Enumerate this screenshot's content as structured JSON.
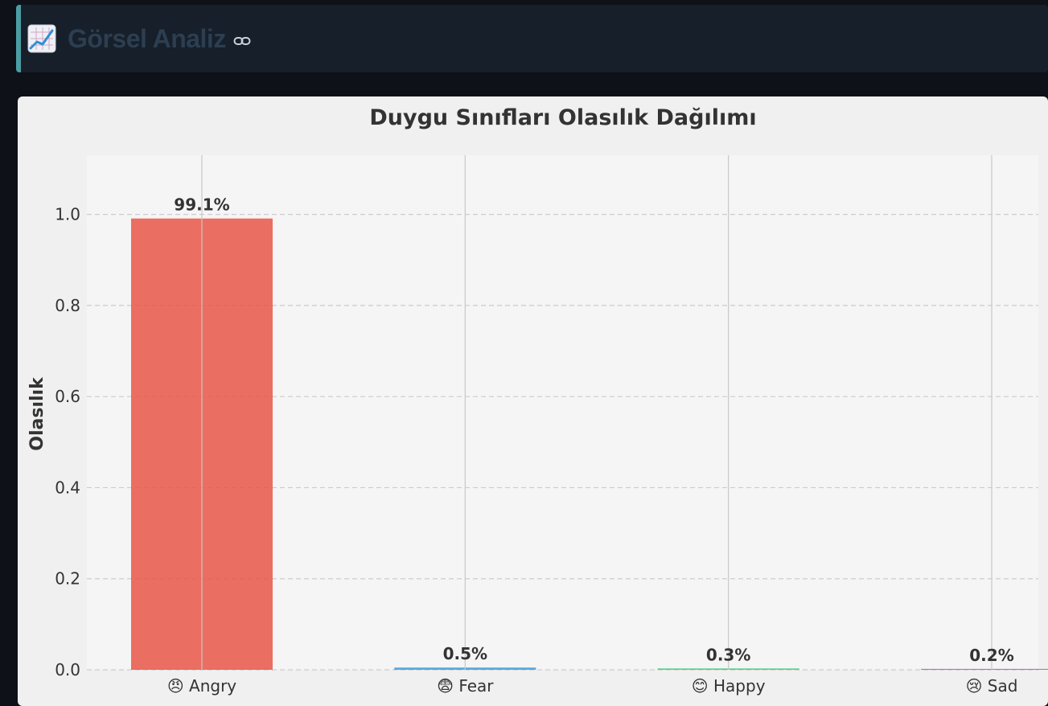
{
  "section": {
    "title": "Görsel Analiz",
    "icon": "chart-increasing-icon",
    "link_icon": "link-icon",
    "accent_color": "#4a9ea3"
  },
  "chart_data": {
    "type": "bar",
    "title": "Duygu Sınıfları Olasılık Dağılımı",
    "xlabel": "",
    "ylabel": "Olasılık",
    "categories": [
      "😠 Angry",
      "😨 Fear",
      "😊 Happy",
      "😢 Sad"
    ],
    "values": [
      0.991,
      0.005,
      0.003,
      0.002
    ],
    "value_labels": [
      "99.1%",
      "0.5%",
      "0.3%",
      "0.2%"
    ],
    "colors": [
      "#e74c3c",
      "#3498db",
      "#2ecc71",
      "#9b59b6"
    ],
    "ylim": [
      0,
      1.13
    ],
    "yticks": [
      0.0,
      0.2,
      0.4,
      0.6,
      0.8,
      1.0
    ],
    "ytick_labels": [
      "0.0",
      "0.2",
      "0.4",
      "0.6",
      "0.8",
      "1.0"
    ],
    "grid": true,
    "legend": "none"
  }
}
